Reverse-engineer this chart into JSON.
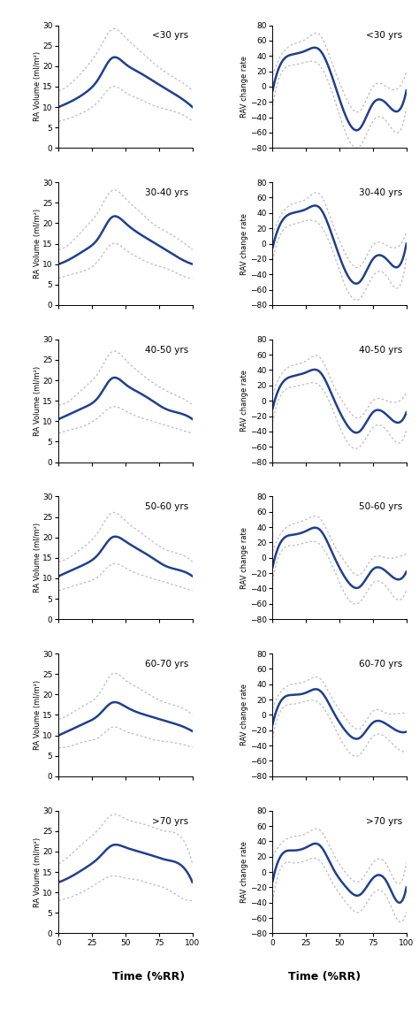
{
  "age_groups": [
    "<30 yrs",
    "30-40 yrs",
    "40-50 yrs",
    "50-60 yrs",
    "60-70 yrs",
    ">70 yrs"
  ],
  "vol_ylim": [
    0,
    30
  ],
  "vol_yticks": [
    0,
    5,
    10,
    15,
    20,
    25,
    30
  ],
  "rate_ylim": [
    -80,
    80
  ],
  "rate_yticks": [
    -80,
    -60,
    -40,
    -20,
    0,
    20,
    40,
    60,
    80
  ],
  "xlabel": "Time (%RR)",
  "ylabel_vol": "RA Volume (ml/m²)",
  "ylabel_rate": "RAV change rate",
  "line_color": "#1f3f8f",
  "ci_color": "#bbbbbb",
  "vol_knots": [
    0,
    10,
    20,
    30,
    40,
    50,
    60,
    70,
    80,
    90,
    100
  ],
  "vol_means": [
    [
      10.0,
      11.5,
      13.5,
      17.0,
      22.0,
      20.5,
      18.5,
      16.5,
      14.5,
      12.5,
      10.0
    ],
    [
      10.0,
      11.5,
      13.5,
      16.5,
      21.5,
      20.0,
      17.5,
      15.5,
      13.5,
      11.5,
      10.0
    ],
    [
      10.5,
      12.0,
      13.5,
      16.0,
      20.5,
      19.0,
      17.0,
      15.0,
      13.0,
      12.0,
      10.5
    ],
    [
      10.5,
      12.0,
      13.5,
      16.0,
      20.0,
      19.0,
      17.0,
      15.0,
      13.0,
      12.0,
      10.5
    ],
    [
      10.0,
      11.5,
      13.0,
      15.0,
      18.0,
      17.0,
      15.5,
      14.5,
      13.5,
      12.5,
      11.0
    ],
    [
      12.5,
      14.0,
      16.0,
      18.5,
      21.5,
      21.0,
      20.0,
      19.0,
      18.0,
      17.0,
      12.5
    ]
  ],
  "vol_upper": [
    [
      14.0,
      16.0,
      19.5,
      24.0,
      29.0,
      27.0,
      24.0,
      21.0,
      18.5,
      16.5,
      14.0
    ],
    [
      13.5,
      15.5,
      19.0,
      23.0,
      28.0,
      26.0,
      23.0,
      20.0,
      18.0,
      16.0,
      13.5
    ],
    [
      14.0,
      15.5,
      18.5,
      22.0,
      27.0,
      25.0,
      22.0,
      19.5,
      17.5,
      16.0,
      14.0
    ],
    [
      14.0,
      15.5,
      18.0,
      21.5,
      26.0,
      24.0,
      21.5,
      19.0,
      17.0,
      16.0,
      14.0
    ],
    [
      14.0,
      15.5,
      17.5,
      20.0,
      25.0,
      23.5,
      21.5,
      19.5,
      18.0,
      17.0,
      15.0
    ],
    [
      17.0,
      19.5,
      22.5,
      25.5,
      29.0,
      28.0,
      27.0,
      26.0,
      25.0,
      24.0,
      17.0
    ]
  ],
  "vol_lower": [
    [
      6.5,
      7.5,
      9.0,
      11.5,
      15.0,
      13.5,
      12.0,
      10.5,
      9.5,
      8.5,
      6.5
    ],
    [
      6.5,
      7.5,
      8.5,
      11.0,
      15.0,
      13.5,
      11.5,
      10.0,
      9.0,
      7.5,
      6.5
    ],
    [
      7.0,
      8.0,
      9.0,
      11.0,
      13.5,
      12.5,
      11.0,
      10.0,
      9.0,
      8.0,
      7.0
    ],
    [
      7.0,
      8.0,
      9.0,
      10.5,
      13.5,
      12.5,
      11.0,
      10.0,
      9.0,
      8.0,
      7.0
    ],
    [
      7.0,
      7.5,
      8.5,
      9.5,
      12.0,
      11.0,
      10.0,
      9.0,
      8.5,
      8.0,
      7.0
    ],
    [
      8.0,
      9.0,
      10.5,
      12.5,
      14.0,
      13.5,
      13.0,
      12.0,
      11.0,
      9.0,
      8.0
    ]
  ],
  "rate_knots": [
    0,
    8,
    15,
    25,
    35,
    45,
    55,
    65,
    75,
    85,
    95,
    100
  ],
  "rate_means": [
    [
      -5,
      35,
      42,
      47,
      48,
      10,
      -40,
      -55,
      -22,
      -22,
      -30,
      -5
    ],
    [
      -5,
      32,
      40,
      45,
      47,
      8,
      -38,
      -50,
      -20,
      -20,
      -28,
      0
    ],
    [
      -10,
      25,
      32,
      37,
      38,
      5,
      -30,
      -40,
      -15,
      -18,
      -28,
      -15
    ],
    [
      -12,
      25,
      30,
      35,
      37,
      5,
      -28,
      -38,
      -15,
      -18,
      -28,
      -18
    ],
    [
      -12,
      22,
      26,
      29,
      32,
      5,
      -22,
      -30,
      -10,
      -12,
      -22,
      -22
    ],
    [
      -12,
      25,
      28,
      32,
      35,
      5,
      -20,
      -30,
      -8,
      -12,
      -40,
      -20
    ]
  ],
  "rate_upper": [
    [
      15,
      45,
      55,
      62,
      68,
      28,
      -15,
      -32,
      0,
      0,
      0,
      20
    ],
    [
      12,
      42,
      52,
      58,
      65,
      25,
      -15,
      -30,
      -2,
      -2,
      -2,
      15
    ],
    [
      8,
      38,
      46,
      52,
      57,
      22,
      -8,
      -22,
      0,
      0,
      0,
      10
    ],
    [
      8,
      36,
      44,
      50,
      52,
      20,
      -8,
      -22,
      0,
      0,
      2,
      5
    ],
    [
      8,
      34,
      40,
      44,
      48,
      20,
      -5,
      -18,
      5,
      2,
      2,
      2
    ],
    [
      20,
      40,
      46,
      50,
      55,
      25,
      -2,
      -12,
      12,
      10,
      -15,
      12
    ]
  ],
  "rate_lower": [
    [
      -25,
      22,
      28,
      32,
      28,
      -10,
      -62,
      -78,
      -45,
      -45,
      -58,
      -28
    ],
    [
      -22,
      18,
      25,
      30,
      25,
      -10,
      -58,
      -72,
      -42,
      -42,
      -55,
      -18
    ],
    [
      -28,
      12,
      18,
      22,
      20,
      -12,
      -52,
      -60,
      -35,
      -38,
      -55,
      -38
    ],
    [
      -30,
      12,
      16,
      20,
      18,
      -12,
      -50,
      -58,
      -33,
      -38,
      -55,
      -42
    ],
    [
      -30,
      10,
      14,
      18,
      15,
      -12,
      -44,
      -52,
      -28,
      -30,
      -46,
      -48
    ],
    [
      -38,
      10,
      12,
      15,
      15,
      -15,
      -40,
      -52,
      -28,
      -32,
      -65,
      -52
    ]
  ]
}
